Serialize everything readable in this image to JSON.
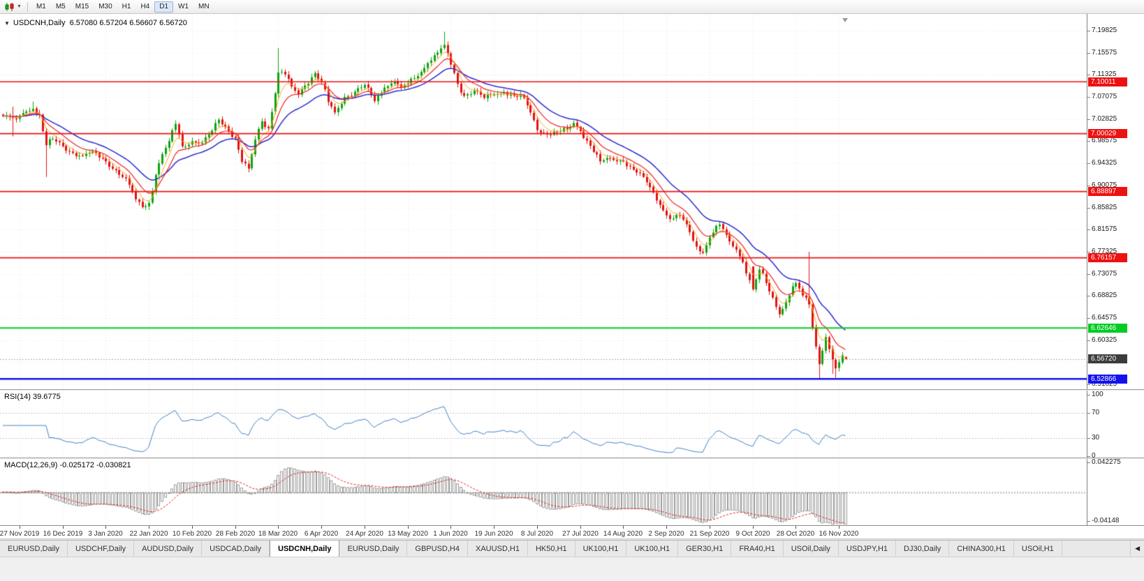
{
  "toolbar": {
    "chart_type_icon": "candlestick-chart-icon",
    "dropdown_icon": "chevron-down-icon",
    "timeframes": [
      "M1",
      "M5",
      "M15",
      "M30",
      "H1",
      "H4",
      "D1",
      "W1",
      "MN"
    ],
    "active_timeframe": "D1"
  },
  "chart": {
    "symbol_title": "USDCNH,Daily",
    "ohlc": "6.57080 6.57204 6.56607 6.56720"
  },
  "rsi": {
    "label": "RSI(14)",
    "value": "39.6775",
    "scale_labels": [
      "100",
      "70",
      "30",
      "0"
    ],
    "level_lines": [
      70,
      30
    ],
    "line_color": "#3f80c4"
  },
  "macd": {
    "label": "MACD(12,26,9)",
    "value": "-0.025172 -0.030821",
    "scale_labels": [
      "0.042275",
      "-0.04148"
    ],
    "histogram_color": "#9a9a9a",
    "signal_color": "#e02020"
  },
  "tab_bar": {
    "scroll_left_icon": "◀",
    "active_index": 4,
    "tabs": [
      "EURUSD,Daily",
      "USDCHF,Daily",
      "AUDUSD,Daily",
      "USDCAD,Daily",
      "USDCNH,Daily",
      "EURUSD,Daily",
      "GBPUSD,H4",
      "XAUUSD,H1",
      "HK50,H1",
      "UK100,H1",
      "UK100,H1",
      "GER30,H1",
      "FRA40,H1",
      "USOil,Daily",
      "USDJPY,H1",
      "DJ30,Daily",
      "CHINA300,H1",
      "USOil,H1"
    ]
  },
  "chart_data": {
    "type": "candlestick",
    "symbol": "USDCNH",
    "timeframe": "Daily",
    "axis": {
      "price_min": 6.5089,
      "price_max": 7.2305,
      "price_labels": [
        "7.19825",
        "7.15575",
        "7.11325",
        "7.07075",
        "7.02825",
        "6.98575",
        "6.94325",
        "6.90075",
        "6.85825",
        "6.81575",
        "6.77325",
        "6.73075",
        "6.68825",
        "6.64575",
        "6.60325",
        "6.56075",
        "6.51825"
      ],
      "time_labels": [
        {
          "i": 5,
          "text": "27 Nov 2019"
        },
        {
          "i": 18,
          "text": "16 Dec 2019"
        },
        {
          "i": 31,
          "text": "3 Jan 2020"
        },
        {
          "i": 44,
          "text": "22 Jan 2020"
        },
        {
          "i": 57,
          "text": "10 Feb 2020"
        },
        {
          "i": 70,
          "text": "28 Feb 2020"
        },
        {
          "i": 83,
          "text": "18 Mar 2020"
        },
        {
          "i": 96,
          "text": "6 Apr 2020"
        },
        {
          "i": 109,
          "text": "24 Apr 2020"
        },
        {
          "i": 122,
          "text": "13 May 2020"
        },
        {
          "i": 135,
          "text": "1 Jun 2020"
        },
        {
          "i": 148,
          "text": "19 Jun 2020"
        },
        {
          "i": 161,
          "text": "8 Jul 2020"
        },
        {
          "i": 174,
          "text": "27 Jul 2020"
        },
        {
          "i": 187,
          "text": "14 Aug 2020"
        },
        {
          "i": 200,
          "text": "2 Sep 2020"
        },
        {
          "i": 213,
          "text": "21 Sep 2020"
        },
        {
          "i": 226,
          "text": "9 Oct 2020"
        },
        {
          "i": 239,
          "text": "28 Oct 2020"
        },
        {
          "i": 252,
          "text": "16 Nov 2020"
        }
      ]
    },
    "levels": [
      {
        "price": 7.10011,
        "label": "7.10011",
        "color": "#ee1111",
        "width": 1.6
      },
      {
        "price": 7.00029,
        "label": "7.00029",
        "color": "#ee1111",
        "width": 1.6
      },
      {
        "price": 6.88897,
        "label": "6.88897",
        "color": "#ee1111",
        "width": 1.6
      },
      {
        "price": 6.76157,
        "label": "6.76157",
        "color": "#ee1111",
        "width": 1.6
      },
      {
        "price": 6.62646,
        "label": "6.62646",
        "color": "#00cc22",
        "width": 2
      },
      {
        "price": 6.52866,
        "label": "6.52866",
        "color": "#1212ee",
        "width": 2.6
      }
    ],
    "current_price": {
      "price": 6.5672,
      "label": "6.56720",
      "badge_color": "#3c3c3c"
    },
    "candles": {
      "count": 255,
      "up_color": "#0ca50c",
      "down_color": "#e31212",
      "noise": 0.006,
      "close_anchors": [
        [
          0,
          7.034
        ],
        [
          4,
          7.028
        ],
        [
          6,
          7.04
        ],
        [
          9,
          7.048
        ],
        [
          11,
          7.036
        ],
        [
          13,
          6.978
        ],
        [
          15,
          6.99
        ],
        [
          18,
          6.976
        ],
        [
          21,
          6.963
        ],
        [
          24,
          6.958
        ],
        [
          27,
          6.966
        ],
        [
          31,
          6.947
        ],
        [
          34,
          6.93
        ],
        [
          36,
          6.917
        ],
        [
          38,
          6.902
        ],
        [
          40,
          6.874
        ],
        [
          42,
          6.859
        ],
        [
          44,
          6.867
        ],
        [
          46,
          6.921
        ],
        [
          48,
          6.961
        ],
        [
          50,
          6.986
        ],
        [
          52,
          7.019
        ],
        [
          54,
          6.976
        ],
        [
          57,
          6.986
        ],
        [
          60,
          6.983
        ],
        [
          63,
          7.006
        ],
        [
          65,
          7.027
        ],
        [
          68,
          7.006
        ],
        [
          70,
          6.992
        ],
        [
          72,
          6.946
        ],
        [
          74,
          6.933
        ],
        [
          76,
          6.989
        ],
        [
          78,
          7.024
        ],
        [
          80,
          7.011
        ],
        [
          82,
          7.078
        ],
        [
          83,
          7.118
        ],
        [
          85,
          7.114
        ],
        [
          87,
          7.091
        ],
        [
          89,
          7.076
        ],
        [
          91,
          7.093
        ],
        [
          94,
          7.117
        ],
        [
          96,
          7.099
        ],
        [
          98,
          7.061
        ],
        [
          100,
          7.041
        ],
        [
          103,
          7.071
        ],
        [
          106,
          7.081
        ],
        [
          109,
          7.094
        ],
        [
          112,
          7.063
        ],
        [
          115,
          7.089
        ],
        [
          118,
          7.101
        ],
        [
          120,
          7.089
        ],
        [
          122,
          7.097
        ],
        [
          125,
          7.111
        ],
        [
          128,
          7.136
        ],
        [
          131,
          7.156
        ],
        [
          133,
          7.171
        ],
        [
          135,
          7.133
        ],
        [
          137,
          7.096
        ],
        [
          139,
          7.073
        ],
        [
          142,
          7.083
        ],
        [
          145,
          7.069
        ],
        [
          148,
          7.075
        ],
        [
          151,
          7.079
        ],
        [
          154,
          7.073
        ],
        [
          157,
          7.069
        ],
        [
          159,
          7.041
        ],
        [
          161,
          7.007
        ],
        [
          164,
          6.999
        ],
        [
          167,
          7.003
        ],
        [
          170,
          7.009
        ],
        [
          172,
          7.021
        ],
        [
          174,
          7.005
        ],
        [
          177,
          6.977
        ],
        [
          180,
          6.947
        ],
        [
          183,
          6.953
        ],
        [
          187,
          6.947
        ],
        [
          190,
          6.931
        ],
        [
          193,
          6.917
        ],
        [
          196,
          6.887
        ],
        [
          198,
          6.863
        ],
        [
          200,
          6.843
        ],
        [
          202,
          6.837
        ],
        [
          204,
          6.843
        ],
        [
          207,
          6.811
        ],
        [
          209,
          6.783
        ],
        [
          211,
          6.771
        ],
        [
          213,
          6.801
        ],
        [
          215,
          6.823
        ],
        [
          217,
          6.817
        ],
        [
          219,
          6.793
        ],
        [
          221,
          6.777
        ],
        [
          223,
          6.753
        ],
        [
          226,
          6.701
        ],
        [
          228,
          6.739
        ],
        [
          230,
          6.713
        ],
        [
          232,
          6.685
        ],
        [
          234,
          6.653
        ],
        [
          236,
          6.677
        ],
        [
          238,
          6.707
        ],
        [
          239,
          6.713
        ],
        [
          241,
          6.689
        ],
        [
          243,
          6.672
        ],
        [
          244,
          6.626
        ],
        [
          245,
          6.591
        ],
        [
          246,
          6.557
        ],
        [
          247,
          6.583
        ],
        [
          248,
          6.609
        ],
        [
          249,
          6.586
        ],
        [
          250,
          6.566
        ],
        [
          251,
          6.549
        ],
        [
          252,
          6.561
        ],
        [
          253,
          6.574
        ],
        [
          254,
          6.5672
        ]
      ],
      "overrides": [
        {
          "i": 3,
          "l": 6.995,
          "h": 7.052
        },
        {
          "i": 9,
          "h": 7.062
        },
        {
          "i": 13,
          "l": 6.917
        },
        {
          "i": 83,
          "h": 7.165
        },
        {
          "i": 133,
          "h": 7.1965
        },
        {
          "i": 226,
          "o": 6.745
        },
        {
          "i": 243,
          "h": 6.773
        },
        {
          "i": 246,
          "l": 6.5287
        },
        {
          "i": 250,
          "l": 6.5385
        },
        {
          "i": 251,
          "l": 6.531
        },
        {
          "i": 254,
          "o": 6.5708,
          "h": 6.57204,
          "l": 6.56607,
          "c": 6.5672
        }
      ]
    },
    "moving_averages": [
      {
        "period": 21,
        "color": "#2b2bd0",
        "width": 1.5
      },
      {
        "period": 10,
        "color": "#ef2020",
        "width": 1.2
      },
      {
        "period": 5,
        "color": "#f6a81e",
        "width": 1
      }
    ],
    "macd_range": {
      "max": 0.047,
      "min": -0.046
    }
  }
}
